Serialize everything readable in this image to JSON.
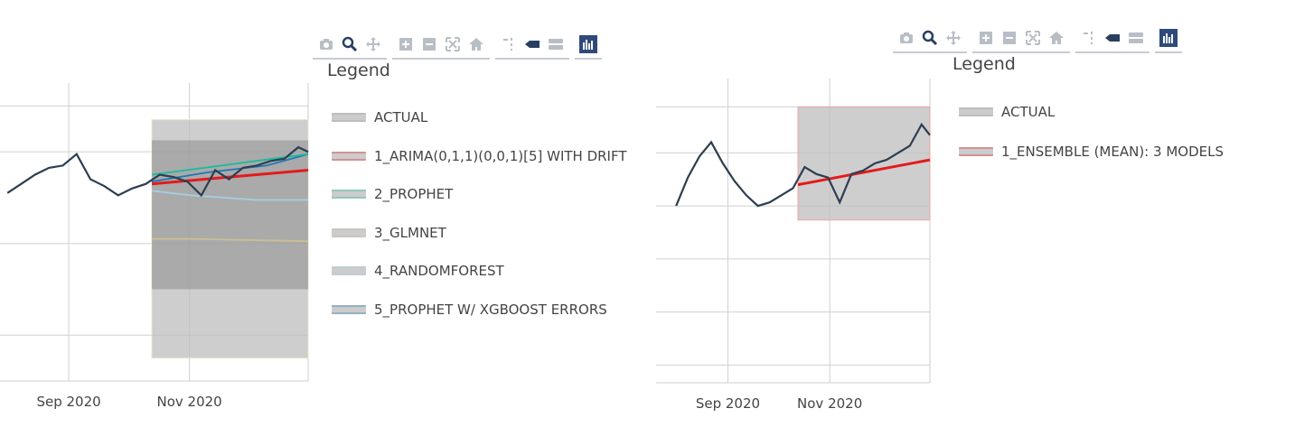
{
  "modebar_icons": [
    "camera-icon",
    "zoom-icon",
    "pan-icon",
    "zoom-in-icon",
    "zoom-out-icon",
    "autoscale-icon",
    "reset-axes-icon",
    "spike-lines-icon",
    "hover-closest-icon",
    "hover-compare-icon",
    "plotly-logo-icon"
  ],
  "left_panel": {
    "legend_title": "Legend",
    "legend_items": [
      {
        "label": "ACTUAL",
        "color": "#2c3e50"
      },
      {
        "label": "1_ARIMA(0,1,1)(0,0,1)[5] WITH DRIFT",
        "color": "#e31a1c"
      },
      {
        "label": "2_PROPHET",
        "color": "#18bc9c"
      },
      {
        "label": "3_GLMNET",
        "color": "#ccbe93"
      },
      {
        "label": "4_RANDOMFOREST",
        "color": "#a6cee3"
      },
      {
        "label": "5_PROPHET W/ XGBOOST ERRORS",
        "color": "#1f78b4"
      }
    ],
    "x_ticks": [
      "Sep 2020",
      "Nov 2020"
    ]
  },
  "right_panel": {
    "legend_title": "Legend",
    "legend_items": [
      {
        "label": "ACTUAL",
        "color": "#2c3e50"
      },
      {
        "label": "1_ENSEMBLE (MEAN): 3 MODELS",
        "color": "#e31a1c"
      }
    ],
    "x_ticks": [
      "Sep 2020",
      "Nov 2020"
    ]
  },
  "chart_data": [
    {
      "type": "line",
      "x_ticks": [
        "Sep 2020",
        "Nov 2020"
      ],
      "y_ticks": [],
      "series": [
        {
          "name": "ACTUAL",
          "color": "#2c3e50",
          "x": [
            "2020-08-01",
            "2020-08-08",
            "2020-08-15",
            "2020-08-22",
            "2020-08-29",
            "2020-09-05",
            "2020-09-12",
            "2020-09-19",
            "2020-09-26",
            "2020-10-03",
            "2020-10-10",
            "2020-10-17",
            "2020-10-24",
            "2020-10-31",
            "2020-11-07",
            "2020-11-14",
            "2020-11-21",
            "2020-11-28",
            "2020-12-05",
            "2020-12-12",
            "2020-12-19",
            "2020-12-26",
            "2020-12-31"
          ],
          "y": [
            62,
            66,
            70,
            73,
            74,
            79,
            68,
            65,
            61,
            64,
            66,
            70,
            69,
            67,
            61,
            72,
            68,
            73,
            74,
            76,
            77,
            82,
            80
          ]
        },
        {
          "name": "1_ARIMA(0,1,1)(0,0,1)[5] WITH DRIFT",
          "color": "#e31a1c",
          "x": [
            "2020-10-13",
            "2020-12-31"
          ],
          "y": [
            66,
            72
          ]
        },
        {
          "name": "2_PROPHET",
          "color": "#18bc9c",
          "x": [
            "2020-10-13",
            "2020-12-31"
          ],
          "y": [
            70,
            79
          ]
        },
        {
          "name": "3_GLMNET",
          "color": "#ccbe93",
          "x": [
            "2020-10-13",
            "2020-11-02",
            "2020-12-31"
          ],
          "y": [
            42,
            42,
            41
          ]
        },
        {
          "name": "4_RANDOMFOREST",
          "color": "#a6cee3",
          "x": [
            "2020-10-13",
            "2020-11-02",
            "2020-12-05",
            "2020-12-31"
          ],
          "y": [
            63,
            61,
            59,
            59
          ]
        },
        {
          "name": "5_PROPHET W/ XGBOOST ERRORS",
          "color": "#1f78b4",
          "x": [
            "2020-10-13",
            "2020-11-10",
            "2020-12-10",
            "2020-12-31"
          ],
          "y": [
            67,
            71,
            74,
            79
          ]
        }
      ],
      "forecast_band": {
        "start": "2020-10-13",
        "end": "2020-12-31",
        "low": -10,
        "high": 94
      },
      "grid": true,
      "legend_placement": "right"
    },
    {
      "type": "line",
      "x_ticks": [
        "Sep 2020",
        "Nov 2020"
      ],
      "y_ticks": [],
      "series": [
        {
          "name": "ACTUAL",
          "color": "#2c3e50",
          "x": [
            "2020-08-01",
            "2020-08-08",
            "2020-08-15",
            "2020-08-22",
            "2020-08-29",
            "2020-09-05",
            "2020-09-12",
            "2020-09-19",
            "2020-09-26",
            "2020-10-03",
            "2020-10-10",
            "2020-10-17",
            "2020-10-24",
            "2020-10-31",
            "2020-11-07",
            "2020-11-14",
            "2020-11-21",
            "2020-11-28",
            "2020-12-05",
            "2020-12-12",
            "2020-12-19",
            "2020-12-26",
            "2020-12-31"
          ],
          "y": [
            60,
            68,
            74,
            78,
            72,
            67,
            63,
            60,
            61,
            63,
            65,
            71,
            69,
            68,
            61,
            69,
            70,
            72,
            73,
            75,
            77,
            83,
            80
          ]
        },
        {
          "name": "1_ENSEMBLE (MEAN): 3 MODELS",
          "color": "#e31a1c",
          "x": [
            "2020-10-13",
            "2020-12-31"
          ],
          "y": [
            66,
            73
          ]
        }
      ],
      "forecast_band": {
        "start": "2020-10-13",
        "end": "2020-12-31",
        "low": 56,
        "high": 88
      },
      "grid": true,
      "legend_placement": "right"
    }
  ]
}
